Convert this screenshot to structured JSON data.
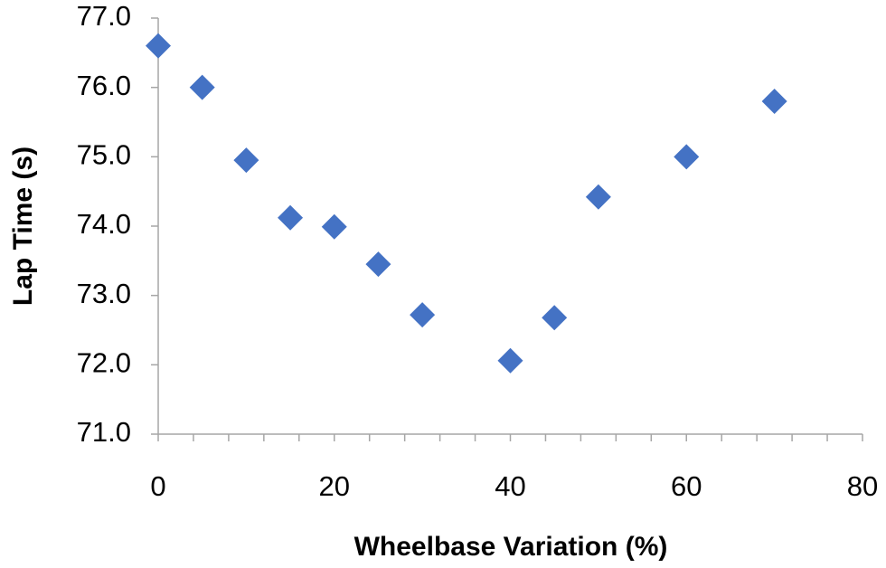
{
  "chart_data": {
    "type": "scatter",
    "x_label": "Wheelbase Variation (%)",
    "y_label": "Lap Time (s)",
    "x": [
      0,
      5,
      10,
      15,
      20,
      25,
      30,
      40,
      45,
      50,
      60,
      70
    ],
    "series": [
      {
        "color": "#4472c4",
        "values": [
          76.6,
          76.0,
          74.95,
          74.12,
          73.99,
          73.45,
          72.72,
          72.06,
          72.68,
          74.42,
          75.0,
          75.8
        ]
      }
    ],
    "xlim": [
      0,
      80
    ],
    "xticks": [
      0,
      20,
      40,
      60,
      80
    ],
    "ylim": [
      71,
      77
    ],
    "yticks": [
      {
        "value": 71,
        "label": "71.0"
      },
      {
        "value": 72,
        "label": "72.0"
      },
      {
        "value": 73,
        "label": "73.0"
      },
      {
        "value": 74,
        "label": "74.0"
      },
      {
        "value": 75,
        "label": "75.0"
      },
      {
        "value": 76,
        "label": "76.0"
      },
      {
        "value": 77,
        "label": "77.0"
      }
    ],
    "grid": false
  }
}
